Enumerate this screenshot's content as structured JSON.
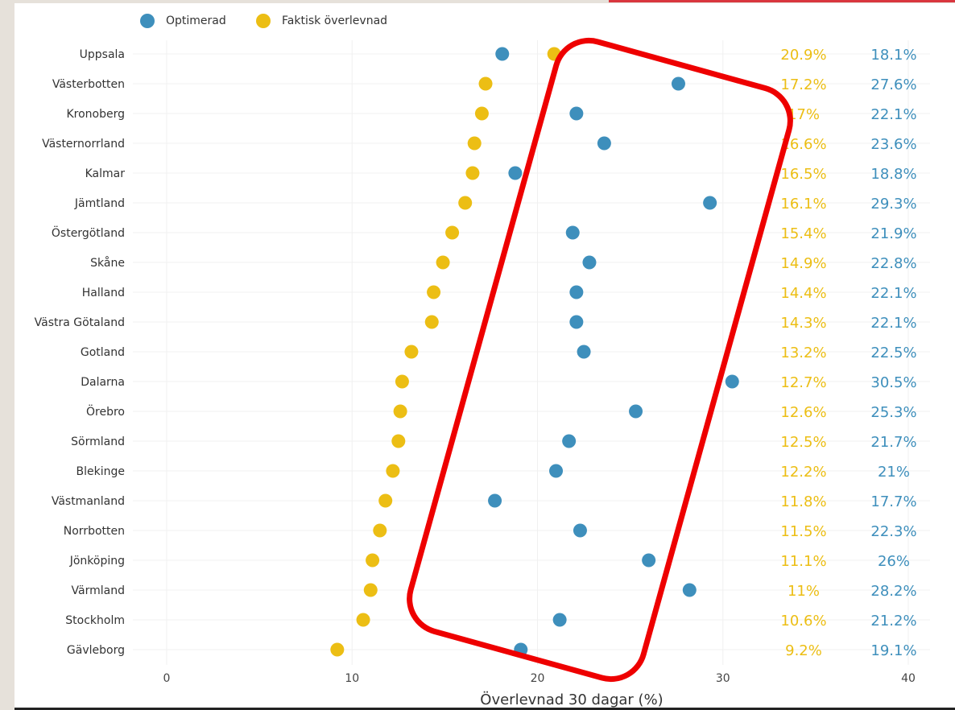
{
  "legend": {
    "optimized_label": "Optimerad",
    "actual_label": "Faktisk överlevnad"
  },
  "colors": {
    "optimized": "#3e8fbc",
    "actual": "#ecbe14",
    "highlight": "#ee0000",
    "grid": "#f0f0f0"
  },
  "chart_data": {
    "type": "scatter",
    "xlabel": "Överlevnad 30 dagar (%)",
    "xlim": [
      0,
      40
    ],
    "xticks": [
      0,
      10,
      20,
      30,
      40
    ],
    "regions": [
      "Uppsala",
      "Västerbotten",
      "Kronoberg",
      "Västernorrland",
      "Kalmar",
      "Jämtland",
      "Östergötland",
      "Skåne",
      "Halland",
      "Västra Götaland",
      "Gotland",
      "Dalarna",
      "Örebro",
      "Sörmland",
      "Blekinge",
      "Västmanland",
      "Norrbotten",
      "Jönköping",
      "Värmland",
      "Stockholm",
      "Gävleborg"
    ],
    "series": [
      {
        "name": "Optimerad",
        "values": [
          18.1,
          27.6,
          22.1,
          23.6,
          18.8,
          29.3,
          21.9,
          22.8,
          22.1,
          22.1,
          22.5,
          30.5,
          25.3,
          21.7,
          21,
          17.7,
          22.3,
          26,
          28.2,
          21.2,
          19.1
        ],
        "labels": [
          "18.1%",
          "27.6%",
          "22.1%",
          "23.6%",
          "18.8%",
          "29.3%",
          "21.9%",
          "22.8%",
          "22.1%",
          "22.1%",
          "22.5%",
          "30.5%",
          "25.3%",
          "21.7%",
          "21%",
          "17.7%",
          "22.3%",
          "26%",
          "28.2%",
          "21.2%",
          "19.1%"
        ]
      },
      {
        "name": "Faktisk överlevnad",
        "values": [
          20.9,
          17.2,
          17,
          16.6,
          16.5,
          16.1,
          15.4,
          14.9,
          14.4,
          14.3,
          13.2,
          12.7,
          12.6,
          12.5,
          12.2,
          11.8,
          11.5,
          11.1,
          11,
          10.6,
          9.2
        ],
        "labels": [
          "20.9%",
          "17.2%",
          "17%",
          "16.6%",
          "16.5%",
          "16.1%",
          "15.4%",
          "14.9%",
          "14.4%",
          "14.3%",
          "13.2%",
          "12.7%",
          "12.6%",
          "12.5%",
          "12.2%",
          "11.8%",
          "11.5%",
          "11.1%",
          "11%",
          "10.6%",
          "9.2%"
        ]
      }
    ]
  }
}
